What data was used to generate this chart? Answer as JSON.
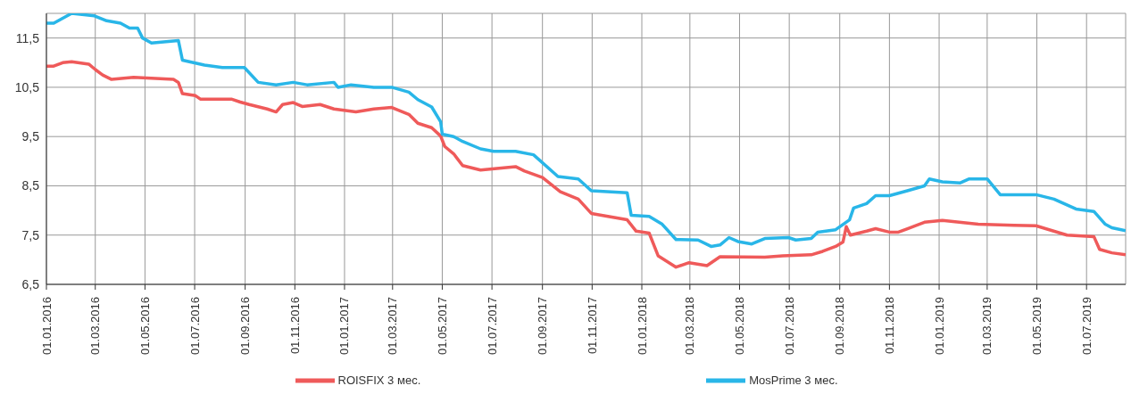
{
  "chart_data": {
    "type": "line",
    "legend": "bottom",
    "grid": true,
    "marker": "none",
    "line_style": "solid",
    "xlim": [
      "2016-01-01",
      "2019-08-18"
    ],
    "xticks": [
      {
        "value": "2016-01-01",
        "label": "01.01.2016"
      },
      {
        "value": "2016-03-01",
        "label": "01.03.2016"
      },
      {
        "value": "2016-05-01",
        "label": "01.05.2016"
      },
      {
        "value": "2016-07-01",
        "label": "01.07.2016"
      },
      {
        "value": "2016-09-01",
        "label": "01.09.2016"
      },
      {
        "value": "2016-11-01",
        "label": "01.11.2016"
      },
      {
        "value": "2017-01-01",
        "label": "01.01.2017"
      },
      {
        "value": "2017-03-01",
        "label": "01.03.2017"
      },
      {
        "value": "2017-05-01",
        "label": "01.05.2017"
      },
      {
        "value": "2017-07-01",
        "label": "01.07.2017"
      },
      {
        "value": "2017-09-01",
        "label": "01.09.2017"
      },
      {
        "value": "2017-11-01",
        "label": "01.11.2017"
      },
      {
        "value": "2018-01-01",
        "label": "01.01.2018"
      },
      {
        "value": "2018-03-01",
        "label": "01.03.2018"
      },
      {
        "value": "2018-05-01",
        "label": "01.05.2018"
      },
      {
        "value": "2018-07-01",
        "label": "01.07.2018"
      },
      {
        "value": "2018-09-01",
        "label": "01.09.2018"
      },
      {
        "value": "2018-11-01",
        "label": "01.11.2018"
      },
      {
        "value": "2019-01-01",
        "label": "01.01.2019"
      },
      {
        "value": "2019-03-01",
        "label": "01.03.2019"
      },
      {
        "value": "2019-05-01",
        "label": "01.05.2019"
      },
      {
        "value": "2019-07-01",
        "label": "01.07.2019"
      }
    ],
    "ylim": [
      6.5,
      12
    ],
    "yticks": [
      {
        "value": 6.5,
        "label": "6,5"
      },
      {
        "value": 7.5,
        "label": "7,5"
      },
      {
        "value": 8.5,
        "label": "8,5"
      },
      {
        "value": 9.5,
        "label": "9,5"
      },
      {
        "value": 10.5,
        "label": "10,5"
      },
      {
        "value": 11.5,
        "label": "11,5"
      }
    ],
    "series": [
      {
        "name": "ROISFIX 3 мес.",
        "color": "#ef5a5a",
        "x": [
          "2016-01-01",
          "2016-01-10",
          "2016-01-21",
          "2016-02-01",
          "2016-02-22",
          "2016-03-01",
          "2016-03-10",
          "2016-03-21",
          "2016-04-17",
          "2016-06-05",
          "2016-06-11",
          "2016-06-16",
          "2016-07-02",
          "2016-07-08",
          "2016-08-15",
          "2016-08-26",
          "2016-09-06",
          "2016-09-28",
          "2016-10-09",
          "2016-10-17",
          "2016-10-30",
          "2016-11-10",
          "2016-12-02",
          "2016-12-19",
          "2017-01-15",
          "2017-02-06",
          "2017-02-28",
          "2017-03-21",
          "2017-04-01",
          "2017-04-18",
          "2017-04-29",
          "2017-05-04",
          "2017-05-15",
          "2017-05-26",
          "2017-06-17",
          "2017-07-30",
          "2017-08-10",
          "2017-09-01",
          "2017-09-23",
          "2017-10-15",
          "2017-10-31",
          "2017-12-14",
          "2017-12-25",
          "2018-01-10",
          "2018-01-21",
          "2018-02-12",
          "2018-02-28",
          "2018-03-22",
          "2018-04-07",
          "2018-06-01",
          "2018-06-23",
          "2018-07-28",
          "2018-08-11",
          "2018-08-27",
          "2018-09-05",
          "2018-09-09",
          "2018-09-14",
          "2018-10-04",
          "2018-10-15",
          "2018-11-01",
          "2018-11-12",
          "2018-12-14",
          "2019-01-05",
          "2019-02-18",
          "2019-04-03",
          "2019-04-30",
          "2019-06-07",
          "2019-07-10",
          "2019-07-17",
          "2019-08-01",
          "2019-08-18"
        ],
        "values": [
          10.93,
          10.93,
          11.0,
          11.02,
          10.97,
          10.86,
          10.75,
          10.66,
          10.7,
          10.66,
          10.6,
          10.37,
          10.33,
          10.26,
          10.26,
          10.2,
          10.15,
          10.06,
          10.0,
          10.15,
          10.19,
          10.11,
          10.15,
          10.06,
          10.0,
          10.06,
          10.09,
          9.95,
          9.77,
          9.68,
          9.51,
          9.3,
          9.15,
          8.91,
          8.82,
          8.89,
          8.8,
          8.67,
          8.38,
          8.23,
          7.94,
          7.81,
          7.58,
          7.54,
          7.08,
          6.85,
          6.94,
          6.88,
          7.06,
          7.05,
          7.08,
          7.1,
          7.17,
          7.27,
          7.36,
          7.67,
          7.5,
          7.58,
          7.63,
          7.56,
          7.56,
          7.76,
          7.8,
          7.72,
          7.7,
          7.69,
          7.5,
          7.47,
          7.21,
          7.14,
          7.1
        ]
      },
      {
        "name": "MosPrime 3 мес.",
        "color": "#29b6e8",
        "x": [
          "2016-01-01",
          "2016-01-10",
          "2016-02-01",
          "2016-02-29",
          "2016-03-15",
          "2016-04-01",
          "2016-04-12",
          "2016-04-22",
          "2016-04-28",
          "2016-05-09",
          "2016-06-11",
          "2016-06-16",
          "2016-07-13",
          "2016-08-04",
          "2016-08-31",
          "2016-09-17",
          "2016-10-09",
          "2016-10-30",
          "2016-11-16",
          "2016-12-19",
          "2016-12-24",
          "2017-01-09",
          "2017-02-06",
          "2017-02-28",
          "2017-03-21",
          "2017-04-01",
          "2017-04-18",
          "2017-04-29",
          "2017-05-01",
          "2017-05-15",
          "2017-05-26",
          "2017-06-17",
          "2017-07-03",
          "2017-07-30",
          "2017-08-21",
          "2017-09-20",
          "2017-10-15",
          "2017-10-31",
          "2017-12-14",
          "2017-12-19",
          "2018-01-10",
          "2018-01-26",
          "2018-02-12",
          "2018-03-11",
          "2018-03-27",
          "2018-04-07",
          "2018-04-18",
          "2018-04-29",
          "2018-05-16",
          "2018-06-01",
          "2018-06-30",
          "2018-07-09",
          "2018-07-28",
          "2018-08-05",
          "2018-08-27",
          "2018-09-13",
          "2018-09-18",
          "2018-10-04",
          "2018-10-15",
          "2018-11-01",
          "2018-11-23",
          "2018-12-14",
          "2018-12-20",
          "2019-01-05",
          "2019-01-27",
          "2019-02-07",
          "2019-03-01",
          "2019-03-17",
          "2019-04-30",
          "2019-05-22",
          "2019-06-18",
          "2019-07-10",
          "2019-07-24",
          "2019-08-01",
          "2019-08-18"
        ],
        "values": [
          11.8,
          11.8,
          12.0,
          11.95,
          11.85,
          11.8,
          11.7,
          11.7,
          11.5,
          11.4,
          11.45,
          11.05,
          10.95,
          10.9,
          10.9,
          10.6,
          10.55,
          10.6,
          10.55,
          10.6,
          10.5,
          10.55,
          10.5,
          10.5,
          10.4,
          10.25,
          10.1,
          9.8,
          9.55,
          9.5,
          9.4,
          9.25,
          9.2,
          9.2,
          9.13,
          8.69,
          8.64,
          8.4,
          8.36,
          7.9,
          7.88,
          7.72,
          7.41,
          7.4,
          7.27,
          7.3,
          7.45,
          7.37,
          7.32,
          7.43,
          7.45,
          7.4,
          7.43,
          7.56,
          7.61,
          7.81,
          8.05,
          8.14,
          8.3,
          8.3,
          8.4,
          8.5,
          8.64,
          8.58,
          8.56,
          8.64,
          8.64,
          8.32,
          8.32,
          8.23,
          8.03,
          7.98,
          7.72,
          7.65,
          7.59
        ]
      }
    ]
  }
}
